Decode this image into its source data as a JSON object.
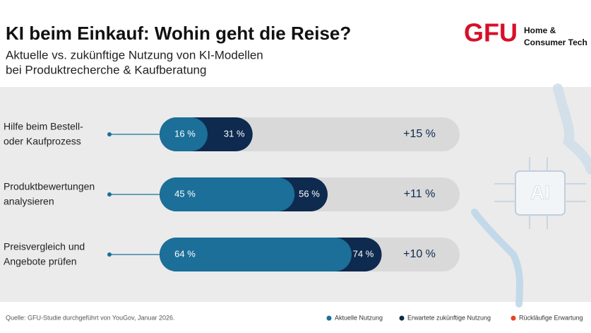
{
  "header": {
    "title": "KI beim Einkauf: Wohin geht die Reise?",
    "subtitle": [
      "Aktuelle vs. zukünftige Nutzung von KI-Modellen",
      "bei Produktrecherche & Kaufberatung"
    ],
    "logo": {
      "brand": "GFU",
      "tagline": [
        "Home &",
        "Consumer Tech"
      ]
    }
  },
  "chart_data": {
    "type": "bar",
    "orientation": "horizontal",
    "categories": [
      [
        "Hilfe beim Bestell-",
        "oder Kaufprozess"
      ],
      [
        "Produktbewertungen",
        "analysieren"
      ],
      [
        "Preisvergleich und",
        "Angebote prüfen"
      ]
    ],
    "series": [
      {
        "name": "Aktuelle Nutzung",
        "color": "#1b6f98",
        "values": [
          16,
          45,
          64
        ],
        "value_labels": [
          "16 %",
          "45 %",
          "64 %"
        ]
      },
      {
        "name": "Erwartete zukünftige Nutzung",
        "color": "#0e2a4f",
        "values": [
          31,
          56,
          74
        ],
        "value_labels": [
          "31 %",
          "56 %",
          "74 %"
        ]
      }
    ],
    "differences": {
      "values": [
        15,
        11,
        10
      ],
      "value_labels": [
        "+15 %",
        "+11 %",
        "+10 %"
      ]
    },
    "legend_extra": [
      {
        "name": "Rückläufige Erwartung",
        "color": "#e5451f"
      }
    ],
    "xlim": [
      0,
      100
    ],
    "track_color": "#d9d9d9"
  },
  "image_text": "AI",
  "footer": {
    "source": "Quelle: GFU-Studie durchgeführt von YouGov, Januar 2026."
  }
}
